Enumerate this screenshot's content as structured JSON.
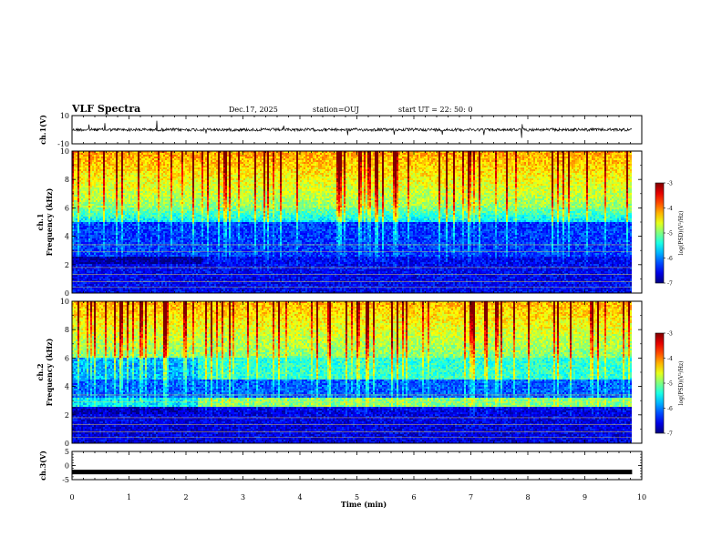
{
  "header": {
    "title": "VLF Spectra",
    "date": "Dec.17, 2025",
    "station": "station=OUJ",
    "start": "start  UT =   22: 50: 0"
  },
  "chart_data": [
    {
      "type": "line",
      "name": "ch1-waveform",
      "ylabel": "ch.1(V)",
      "ylim": [
        -10,
        10
      ],
      "yticks": [
        "10",
        "-10"
      ],
      "baseline": 0,
      "xlim": [
        0,
        10
      ]
    },
    {
      "type": "heatmap",
      "name": "ch1-spectrogram",
      "ylabel_line1": "ch.1",
      "ylabel_line2": "Frequency (kHz)",
      "ylim": [
        0,
        10
      ],
      "yticks": [
        "0",
        "2",
        "4",
        "6",
        "8",
        "10"
      ],
      "xlim": [
        0,
        10
      ],
      "data_end_min": 9.83,
      "colorbar": {
        "label": "log(PSD)(V²/Hz)",
        "range": [
          -7,
          -3
        ],
        "ticks": [
          "-3",
          "-4",
          "-5",
          "-6",
          "-7"
        ]
      }
    },
    {
      "type": "heatmap",
      "name": "ch2-spectrogram",
      "ylabel_line1": "ch.2",
      "ylabel_line2": "Frequency (kHz)",
      "ylim": [
        0,
        10
      ],
      "yticks": [
        "0",
        "2",
        "4",
        "6",
        "8",
        "10"
      ],
      "xlim": [
        0,
        10
      ],
      "data_end_min": 9.83,
      "colorbar": {
        "label": "log(PSD)(V²/Hz)",
        "range": [
          -7,
          -3
        ],
        "ticks": [
          "-3",
          "-4",
          "-5",
          "-6",
          "-7"
        ]
      }
    },
    {
      "type": "line",
      "name": "ch3-waveform",
      "ylabel": "ch.3(V)",
      "ylim": [
        -5,
        5
      ],
      "yticks": [
        "5",
        "0",
        "-5"
      ],
      "baseline": -2.3,
      "xlim": [
        0,
        10
      ],
      "data_end_min": 9.83
    }
  ],
  "xaxis": {
    "label": "Time (min)",
    "ticks": [
      "0",
      "1",
      "2",
      "3",
      "4",
      "5",
      "6",
      "7",
      "8",
      "9",
      "10"
    ]
  }
}
